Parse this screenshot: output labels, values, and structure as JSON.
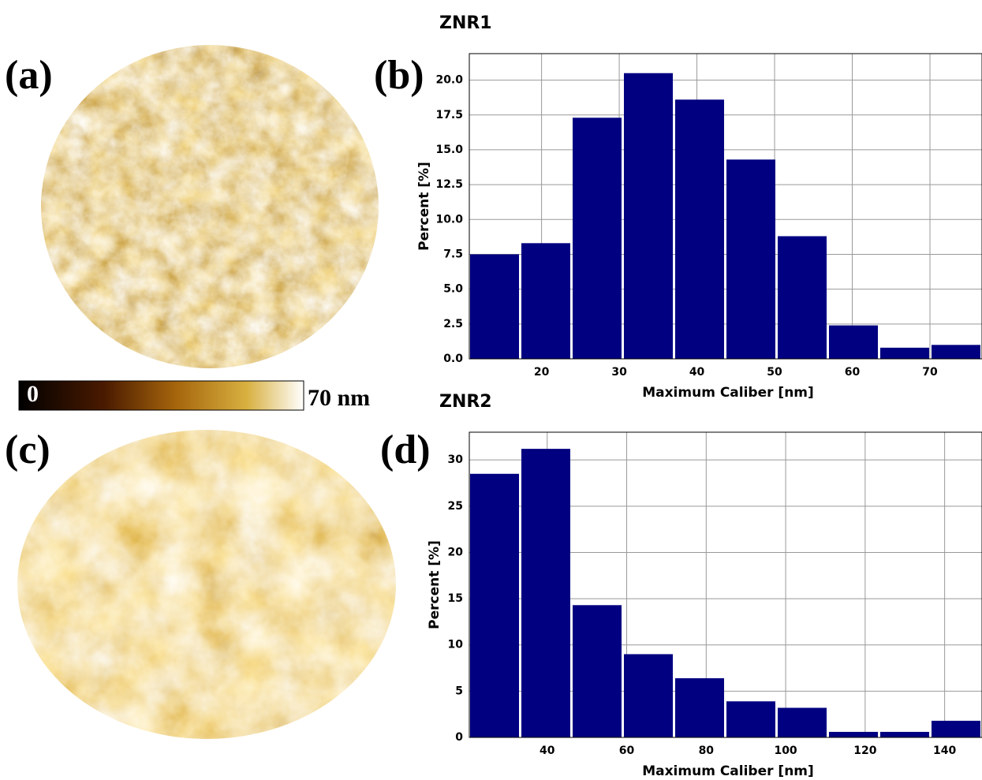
{
  "panel_labels": [
    "(a)",
    "(b)",
    "(c)",
    "(d)"
  ],
  "colorbar": {
    "lim": [
      0,
      70
    ],
    "ticks": [
      0,
      {
        "value": 70,
        "label": "70 nm"
      }
    ]
  },
  "chart_data": [
    {
      "type": "histogram",
      "title": "ZNR1",
      "x_label": "Maximum Caliber [nm]",
      "y_label": "Percent [%]",
      "bins": [
        10.7,
        17.3,
        23.9,
        30.5,
        37.1,
        43.7,
        50.3,
        56.9,
        63.5,
        70.1,
        76.7
      ],
      "values": [
        7.5,
        8.3,
        17.3,
        20.5,
        18.6,
        14.3,
        8.8,
        2.4,
        0.8,
        1.0
      ],
      "color": "#000080",
      "grid": true,
      "xlim": [
        10.7,
        76.7
      ],
      "xticks": [
        20,
        30,
        40,
        50,
        60,
        70
      ],
      "ylim": [
        0,
        21.9
      ],
      "yticks": [
        {
          "value": 0,
          "label": "0.0"
        },
        2.5,
        {
          "value": 5,
          "label": "5.0"
        },
        7.5,
        {
          "value": 10,
          "label": "10.0"
        },
        12.5,
        {
          "value": 15,
          "label": "15.0"
        },
        17.5,
        {
          "value": 20,
          "label": "20.0"
        }
      ]
    },
    {
      "type": "histogram",
      "title": "ZNR2",
      "x_label": "Maximum Caliber [nm]",
      "y_label": "Percent [%]",
      "bins": [
        20.4,
        33.3,
        46.2,
        59.1,
        72.0,
        84.9,
        97.8,
        110.7,
        123.6,
        136.5,
        149.4
      ],
      "values": [
        28.5,
        31.2,
        14.3,
        9.0,
        6.4,
        3.9,
        3.2,
        0.6,
        0.6,
        1.8
      ],
      "color": "#000080",
      "grid": true,
      "xlim": [
        20.4,
        149.4
      ],
      "xticks": [
        40,
        60,
        80,
        100,
        120,
        140
      ],
      "ylim": [
        0,
        33
      ],
      "yticks": [
        0,
        5,
        10,
        15,
        20,
        25,
        30
      ]
    }
  ]
}
